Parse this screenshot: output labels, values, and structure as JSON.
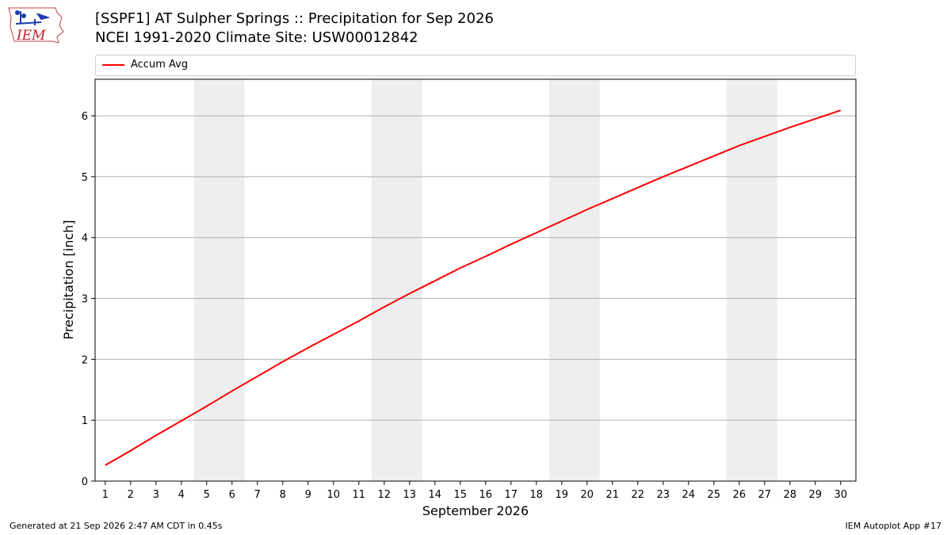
{
  "header": {
    "title_line1": "[SSPF1] AT Sulpher Springs :: Precipitation for Sep 2026",
    "title_line2": "NCEI 1991-2020 Climate Site: USW00012842"
  },
  "logo": {
    "text": "IEM",
    "icon": "iem-iowa-logo"
  },
  "footer": {
    "left": "Generated at 21 Sep 2026 2:47 AM CDT in 0.45s",
    "right": "IEM Autoplot App #17"
  },
  "colors": {
    "line": "#ff0000",
    "weekend_band": "#eeeeee",
    "grid": "#b0b0b0"
  },
  "chart_data": {
    "type": "line",
    "title": "[SSPF1] AT Sulpher Springs :: Precipitation for Sep 2026",
    "xlabel": "September 2026",
    "ylabel": "Precipitation [inch]",
    "x": [
      1,
      2,
      3,
      4,
      5,
      6,
      7,
      8,
      9,
      10,
      11,
      12,
      13,
      14,
      15,
      16,
      17,
      18,
      19,
      20,
      21,
      22,
      23,
      24,
      25,
      26,
      27,
      28,
      29,
      30
    ],
    "xlim": [
      0.6,
      30.6
    ],
    "ylim": [
      0,
      6.6
    ],
    "yticks": [
      0,
      1,
      2,
      3,
      4,
      5,
      6
    ],
    "grid": "horizontal",
    "legend_position": "top",
    "weekend_bands": [
      [
        5,
        6
      ],
      [
        12,
        13
      ],
      [
        19,
        20
      ],
      [
        26,
        27
      ]
    ],
    "series": [
      {
        "name": "Accum Avg",
        "color": "#ff0000",
        "values": [
          0.26,
          0.5,
          0.75,
          0.99,
          1.23,
          1.48,
          1.72,
          1.96,
          2.19,
          2.41,
          2.63,
          2.86,
          3.08,
          3.29,
          3.5,
          3.69,
          3.89,
          4.08,
          4.27,
          4.46,
          4.64,
          4.82,
          5.0,
          5.17,
          5.34,
          5.51,
          5.66,
          5.81,
          5.95,
          6.09
        ]
      }
    ]
  }
}
